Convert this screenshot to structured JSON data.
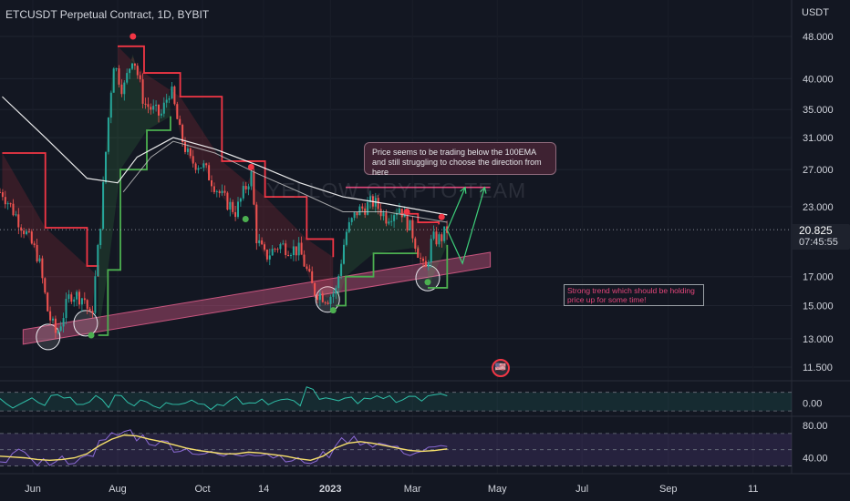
{
  "header": {
    "title": "ETCUSDT Perpetual Contract, 1D, BYBIT",
    "currency": "USDT"
  },
  "price_tag": {
    "price": "20.825",
    "countdown": "07:45:55"
  },
  "watermark": "YELLOW CRYPTO TEAM",
  "annotations": {
    "note_top": "Price seems to be trading below the 100EMA and still struggling to choose the direction from here",
    "note_bottom": "Strong trend which should be holding price up for some time!"
  },
  "colors": {
    "background": "#131722",
    "bull_candle": "#26a69a",
    "bear_candle": "#ef5350",
    "supertrend_up": "#4caf50",
    "supertrend_down": "#f23645",
    "ema": "#ffffff",
    "support_band": "#c7557e",
    "note_text": "#e2467a",
    "rsi": "#f7e06b",
    "osc": "#2fbfa8"
  },
  "chart_data": [
    {
      "type": "candlestick",
      "title": "ETCUSDT Perpetual Contract, 1D, BYBIT",
      "y_unit": "USDT",
      "y_scale": "log",
      "ylim": [
        10.5,
        52
      ],
      "y_ticks": [
        "48.000",
        "40.000",
        "35.000",
        "31.000",
        "27.000",
        "23.000",
        "17.000",
        "15.000",
        "13.000",
        "11.500"
      ],
      "x_ticks": [
        "Jun",
        "Aug",
        "Oct",
        "14",
        "2023",
        "Mar",
        "May",
        "Jul",
        "Sep",
        "11"
      ],
      "last_price": 20.825,
      "price_path": [
        [
          "2022-05-10",
          24.5
        ],
        [
          "2022-05-25",
          21.0
        ],
        [
          "2022-06-05",
          18.5
        ],
        [
          "2022-06-12",
          14.5
        ],
        [
          "2022-06-18",
          13.2
        ],
        [
          "2022-06-28",
          15.8
        ],
        [
          "2022-07-08",
          15.5
        ],
        [
          "2022-07-13",
          14.0
        ],
        [
          "2022-07-20",
          22.0
        ],
        [
          "2022-07-25",
          33.0
        ],
        [
          "2022-07-29",
          43.0
        ],
        [
          "2022-08-05",
          38.0
        ],
        [
          "2022-08-12",
          44.5
        ],
        [
          "2022-08-20",
          36.0
        ],
        [
          "2022-09-01",
          34.0
        ],
        [
          "2022-09-08",
          38.5
        ],
        [
          "2022-09-15",
          31.5
        ],
        [
          "2022-09-22",
          28.0
        ],
        [
          "2022-10-01",
          27.5
        ],
        [
          "2022-10-15",
          24.0
        ],
        [
          "2022-10-25",
          22.5
        ],
        [
          "2022-11-05",
          26.5
        ],
        [
          "2022-11-09",
          20.0
        ],
        [
          "2022-11-15",
          18.5
        ],
        [
          "2022-11-25",
          19.5
        ],
        [
          "2022-12-10",
          19.0
        ],
        [
          "2022-12-20",
          16.0
        ],
        [
          "2022-12-30",
          15.5
        ],
        [
          "2023-01-05",
          16.0
        ],
        [
          "2023-01-12",
          20.5
        ],
        [
          "2023-01-20",
          22.5
        ],
        [
          "2023-02-01",
          23.5
        ],
        [
          "2023-02-10",
          22.0
        ],
        [
          "2023-02-20",
          23.0
        ],
        [
          "2023-03-01",
          20.5
        ],
        [
          "2023-03-10",
          17.2
        ],
        [
          "2023-03-15",
          20.0
        ],
        [
          "2023-03-21",
          20.0
        ],
        [
          "2023-03-26",
          20.825
        ]
      ],
      "ema_100": [
        [
          "2022-05-10",
          37.0
        ],
        [
          "2022-06-10",
          31.0
        ],
        [
          "2022-07-10",
          26.0
        ],
        [
          "2022-08-01",
          25.5
        ],
        [
          "2022-08-15",
          28.5
        ],
        [
          "2022-09-10",
          31.0
        ],
        [
          "2022-10-10",
          29.5
        ],
        [
          "2022-11-10",
          27.5
        ],
        [
          "2022-12-10",
          25.5
        ],
        [
          "2023-01-10",
          24.0
        ],
        [
          "2023-02-10",
          23.3
        ],
        [
          "2023-03-26",
          22.2
        ]
      ],
      "ema_slow": [
        [
          "2022-08-05",
          24.5
        ],
        [
          "2022-08-25",
          28.5
        ],
        [
          "2022-09-10",
          30.5
        ],
        [
          "2022-10-10",
          29.0
        ],
        [
          "2022-11-10",
          26.5
        ],
        [
          "2022-12-10",
          24.5
        ],
        [
          "2023-01-10",
          22.5
        ],
        [
          "2023-02-10",
          22.5
        ],
        [
          "2023-03-26",
          21.5
        ]
      ],
      "supertrend": [
        {
          "trend": "down",
          "points": [
            [
              "2022-05-10",
              29.0
            ],
            [
              "2022-06-10",
              21.0
            ],
            [
              "2022-07-10",
              17.8
            ],
            [
              "2022-07-18",
              17.0
            ]
          ]
        },
        {
          "trend": "up",
          "points": [
            [
              "2022-07-18",
              13.2
            ],
            [
              "2022-07-25",
              17.5
            ],
            [
              "2022-08-03",
              27.0
            ],
            [
              "2022-08-22",
              32.0
            ],
            [
              "2022-09-08",
              34.0
            ]
          ]
        },
        {
          "trend": "down",
          "points": [
            [
              "2022-08-01",
              46.0
            ],
            [
              "2022-08-20",
              41.0
            ],
            [
              "2022-09-15",
              37.0
            ],
            [
              "2022-10-15",
              28.0
            ],
            [
              "2022-11-15",
              24.0
            ],
            [
              "2022-12-15",
              20.0
            ],
            [
              "2023-01-03",
              18.5
            ]
          ]
        },
        {
          "trend": "up",
          "points": [
            [
              "2023-01-05",
              15.0
            ],
            [
              "2023-01-12",
              17.0
            ],
            [
              "2023-02-01",
              18.8
            ],
            [
              "2023-03-05",
              19.3
            ]
          ]
        },
        {
          "trend": "down",
          "points": [
            [
              "2023-02-20",
              22.3
            ],
            [
              "2023-03-05",
              21.5
            ],
            [
              "2023-03-20",
              21.3
            ]
          ]
        },
        {
          "trend": "up",
          "points": [
            [
              "2023-03-12",
              16.2
            ],
            [
              "2023-03-26",
              19.5
            ]
          ]
        }
      ],
      "signals": [
        {
          "type": "sell",
          "date": "2022-08-12",
          "price": 48.0
        },
        {
          "type": "buy",
          "date": "2022-07-13",
          "price": 13.2
        },
        {
          "type": "sell",
          "date": "2022-11-05",
          "price": 27.3
        },
        {
          "type": "buy",
          "date": "2022-11-01",
          "price": 21.8
        },
        {
          "type": "buy",
          "date": "2023-01-03",
          "price": 14.7
        },
        {
          "type": "sell",
          "date": "2023-02-25",
          "price": 22.5
        },
        {
          "type": "sell",
          "date": "2023-03-22",
          "price": 22.0
        },
        {
          "type": "buy",
          "date": "2023-03-12",
          "price": 16.6
        }
      ],
      "support_band": {
        "from": [
          "2022-05-25",
          13.1
        ],
        "to": [
          "2023-04-26",
          18.3
        ],
        "width_pct": 6
      },
      "resistance_line": {
        "from": "2023-01-12",
        "to": "2023-04-26",
        "price": 25.0
      },
      "projections": [
        [
          [
            "2023-03-26",
            20.8
          ],
          [
            "2023-04-06",
            18.0
          ],
          [
            "2023-04-22",
            25.0
          ]
        ],
        [
          [
            "2023-03-26",
            20.8
          ],
          [
            "2023-04-08",
            25.0
          ]
        ]
      ],
      "highlight_circles": [
        [
          "2022-06-12",
          13.1
        ],
        [
          "2022-07-09",
          13.9
        ],
        [
          "2022-12-30",
          15.4
        ],
        [
          "2023-03-12",
          16.9
        ]
      ]
    },
    {
      "type": "line",
      "name": "oscillator",
      "y_ticks": [
        "0.00"
      ],
      "ylim": [
        -1,
        1.6
      ],
      "values": [
        0.2,
        -0.3,
        0.1,
        0.0,
        0.4,
        0.2,
        -0.2,
        0.3,
        0.0,
        0.6,
        0.1,
        0.3,
        -0.1,
        0.2,
        0.0,
        0.3,
        -0.2,
        0.1,
        0.4,
        0.0,
        0.2,
        -0.3,
        0.3,
        0.1,
        1.0,
        0.4,
        0.5,
        0.3,
        0.1,
        0.2,
        0.4,
        0.0,
        0.3,
        0.2,
        0.5,
        0.3
      ]
    },
    {
      "type": "line",
      "name": "rsi",
      "y_ticks": [
        "80.00",
        "40.00"
      ],
      "ylim": [
        25,
        90
      ],
      "rsi": [
        40,
        44,
        42,
        35,
        33,
        38,
        36,
        47,
        58,
        68,
        72,
        65,
        60,
        58,
        52,
        50,
        46,
        44,
        42,
        45,
        48,
        46,
        42,
        40,
        36,
        34,
        44,
        58,
        62,
        60,
        57,
        55,
        50,
        46,
        49,
        51,
        52
      ],
      "rsi_smoothed": [
        42,
        41,
        40,
        38,
        37,
        38,
        40,
        45,
        55,
        63,
        68,
        67,
        63,
        60,
        56,
        52,
        49,
        47,
        45,
        45,
        47,
        46,
        44,
        42,
        39,
        37,
        42,
        52,
        58,
        60,
        58,
        55,
        52,
        49,
        48,
        49,
        51
      ]
    }
  ]
}
